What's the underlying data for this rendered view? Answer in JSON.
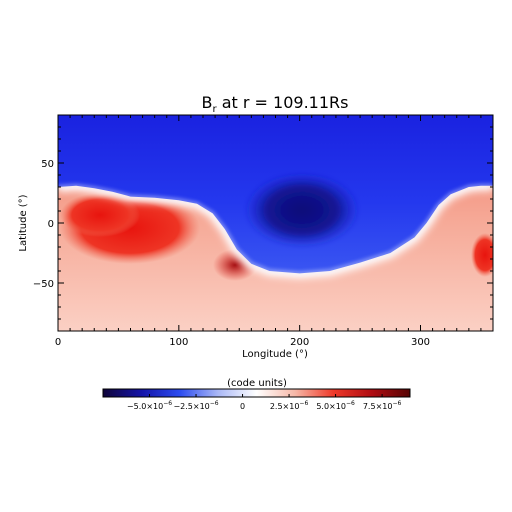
{
  "chart_data": {
    "type": "heatmap",
    "title": {
      "main": "B",
      "subscript": "r",
      "rest": " at r = 109.11Rs"
    },
    "xlabel": "Longitude (°)",
    "ylabel": "Latitude (°)",
    "xlim": [
      0,
      360
    ],
    "ylim": [
      -90,
      90
    ],
    "x_ticks": [
      {
        "value": 0,
        "label": "0"
      },
      {
        "value": 100,
        "label": "100"
      },
      {
        "value": 200,
        "label": "200"
      },
      {
        "value": 300,
        "label": "300"
      }
    ],
    "y_ticks": [
      {
        "value": -50,
        "label": "−50"
      },
      {
        "value": 0,
        "label": "0"
      },
      {
        "value": 50,
        "label": "50"
      }
    ],
    "neutral_line": [
      [
        0,
        30
      ],
      [
        15,
        31
      ],
      [
        30,
        29
      ],
      [
        45,
        26
      ],
      [
        60,
        22
      ],
      [
        80,
        21
      ],
      [
        100,
        19
      ],
      [
        115,
        16
      ],
      [
        128,
        8
      ],
      [
        138,
        -5
      ],
      [
        148,
        -22
      ],
      [
        160,
        -34
      ],
      [
        175,
        -40
      ],
      [
        200,
        -42
      ],
      [
        225,
        -40
      ],
      [
        250,
        -33
      ],
      [
        275,
        -25
      ],
      [
        295,
        -12
      ],
      [
        305,
        0
      ],
      [
        315,
        15
      ],
      [
        325,
        24
      ],
      [
        340,
        30
      ],
      [
        350,
        31
      ],
      [
        360,
        31
      ]
    ],
    "colorbar": {
      "label": "(code units)",
      "vmin": -7.5e-06,
      "vmax": 9e-06,
      "colormap": [
        "#10053a",
        "#1414a8",
        "#2c4cf0",
        "#aab8f6",
        "#ffffff",
        "#f6b8a8",
        "#ee3a2a",
        "#b00c12",
        "#560404"
      ],
      "ticks": [
        {
          "value": -5e-06,
          "mantissa": "−5.0×10",
          "exponent": "−6"
        },
        {
          "value": -2.5e-06,
          "mantissa": "−2.5×10",
          "exponent": "−6"
        },
        {
          "value": 0,
          "mantissa": "0",
          "exponent": ""
        },
        {
          "value": 2.5e-06,
          "mantissa": "2.5×10",
          "exponent": "−6"
        },
        {
          "value": 5e-06,
          "mantissa": "5.0×10",
          "exponent": "−6"
        },
        {
          "value": 7.5e-06,
          "mantissa": "7.5×10",
          "exponent": "−6"
        }
      ]
    },
    "colors": {
      "positive": "#ee3a2a",
      "negative": "#1a2ee6",
      "deep_negative": "#0a0a6a",
      "neutral": "#ffffff"
    }
  }
}
